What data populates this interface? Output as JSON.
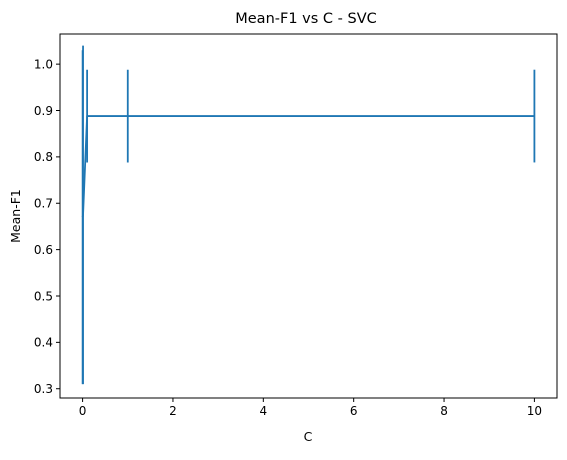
{
  "chart_data": {
    "type": "line",
    "title": "Mean-F1 vs C - SVC",
    "xlabel": "C",
    "ylabel": "Mean-F1",
    "xlim": [
      -0.5,
      10.5
    ],
    "ylim": [
      0.28,
      1.065
    ],
    "xticks": [
      0,
      2,
      4,
      6,
      8,
      10
    ],
    "xtick_labels": [
      "0",
      "2",
      "4",
      "6",
      "8",
      "10"
    ],
    "yticks": [
      0.3,
      0.4,
      0.5,
      0.6,
      0.7,
      0.8,
      0.9,
      1.0
    ],
    "ytick_labels": [
      "0.3",
      "0.4",
      "0.5",
      "0.6",
      "0.7",
      "0.8",
      "0.9",
      "1.0"
    ],
    "grid": false,
    "series": [
      {
        "color": "#1f77b4",
        "x": [
          0.001,
          0.01,
          0.1,
          1,
          10
        ],
        "y": [
          0.67,
          0.675,
          0.888,
          0.888,
          0.888
        ],
        "error": [
          0.36,
          0.365,
          0.1,
          0.1,
          0.1
        ]
      }
    ]
  }
}
